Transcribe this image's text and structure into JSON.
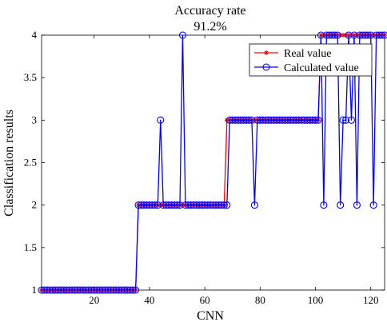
{
  "chart_data": {
    "type": "line",
    "title": "Accuracy rate",
    "subtitle": "91.2%",
    "xlabel": "CNN",
    "ylabel": "Classification results",
    "xlim": [
      1,
      125
    ],
    "ylim": [
      1,
      4
    ],
    "xticks": [
      20,
      40,
      60,
      80,
      100,
      120
    ],
    "yticks": [
      1,
      1.5,
      2,
      2.5,
      3,
      3.5,
      4
    ],
    "xtick_labels": [
      "20",
      "40",
      "60",
      "80",
      "100",
      "120"
    ],
    "ytick_labels": [
      "1",
      "1.5",
      "2",
      "2.5",
      "3",
      "3.5",
      "4"
    ],
    "grid": false,
    "legend_position": "top-right",
    "x": [
      1,
      2,
      3,
      4,
      5,
      6,
      7,
      8,
      9,
      10,
      11,
      12,
      13,
      14,
      15,
      16,
      17,
      18,
      19,
      20,
      21,
      22,
      23,
      24,
      25,
      26,
      27,
      28,
      29,
      30,
      31,
      32,
      33,
      34,
      35,
      36,
      37,
      38,
      39,
      40,
      41,
      42,
      43,
      44,
      45,
      46,
      47,
      48,
      49,
      50,
      51,
      52,
      53,
      54,
      55,
      56,
      57,
      58,
      59,
      60,
      61,
      62,
      63,
      64,
      65,
      66,
      67,
      68,
      69,
      70,
      71,
      72,
      73,
      74,
      75,
      76,
      77,
      78,
      79,
      80,
      81,
      82,
      83,
      84,
      85,
      86,
      87,
      88,
      89,
      90,
      91,
      92,
      93,
      94,
      95,
      96,
      97,
      98,
      99,
      100,
      101,
      102,
      103,
      104,
      105,
      106,
      107,
      108,
      109,
      110,
      111,
      112,
      113,
      114,
      115,
      116,
      117,
      118,
      119,
      120,
      121,
      122,
      123,
      124,
      125
    ],
    "series": [
      {
        "name": "Real value",
        "color": "#ff0000",
        "marker": "asterisk",
        "values": [
          1,
          1,
          1,
          1,
          1,
          1,
          1,
          1,
          1,
          1,
          1,
          1,
          1,
          1,
          1,
          1,
          1,
          1,
          1,
          1,
          1,
          1,
          1,
          1,
          1,
          1,
          1,
          1,
          1,
          1,
          1,
          1,
          1,
          1,
          1,
          2,
          2,
          2,
          2,
          2,
          2,
          2,
          2,
          2,
          2,
          2,
          2,
          2,
          2,
          2,
          2,
          2,
          2,
          2,
          2,
          2,
          2,
          2,
          2,
          2,
          2,
          2,
          2,
          2,
          2,
          2,
          2,
          3,
          3,
          3,
          3,
          3,
          3,
          3,
          3,
          3,
          3,
          3,
          3,
          3,
          3,
          3,
          3,
          3,
          3,
          3,
          3,
          3,
          3,
          3,
          3,
          3,
          3,
          3,
          3,
          3,
          3,
          3,
          3,
          3,
          3,
          4,
          4,
          4,
          4,
          4,
          4,
          4,
          4,
          4,
          4,
          4,
          4,
          4,
          4,
          4,
          4,
          4,
          4,
          4,
          4,
          4,
          4,
          4,
          4
        ]
      },
      {
        "name": "Calculated value",
        "color": "#0000ff",
        "marker": "circle",
        "values": [
          1,
          1,
          1,
          1,
          1,
          1,
          1,
          1,
          1,
          1,
          1,
          1,
          1,
          1,
          1,
          1,
          1,
          1,
          1,
          1,
          1,
          1,
          1,
          1,
          1,
          1,
          1,
          1,
          1,
          1,
          1,
          1,
          1,
          1,
          1,
          2,
          2,
          2,
          2,
          2,
          2,
          2,
          2,
          3,
          2,
          2,
          2,
          2,
          2,
          2,
          2,
          4,
          2,
          2,
          2,
          2,
          2,
          2,
          2,
          2,
          2,
          2,
          2,
          2,
          2,
          2,
          2,
          2,
          3,
          3,
          3,
          3,
          3,
          3,
          3,
          3,
          3,
          2,
          3,
          3,
          3,
          3,
          3,
          3,
          3,
          3,
          3,
          3,
          3,
          3,
          3,
          3,
          3,
          3,
          3,
          3,
          3,
          3,
          3,
          3,
          3,
          4,
          2,
          4,
          4,
          4,
          4,
          4,
          2,
          3,
          3,
          4,
          3,
          4,
          2,
          4,
          4,
          4,
          4,
          4,
          2,
          4,
          4,
          4,
          4
        ]
      }
    ]
  }
}
